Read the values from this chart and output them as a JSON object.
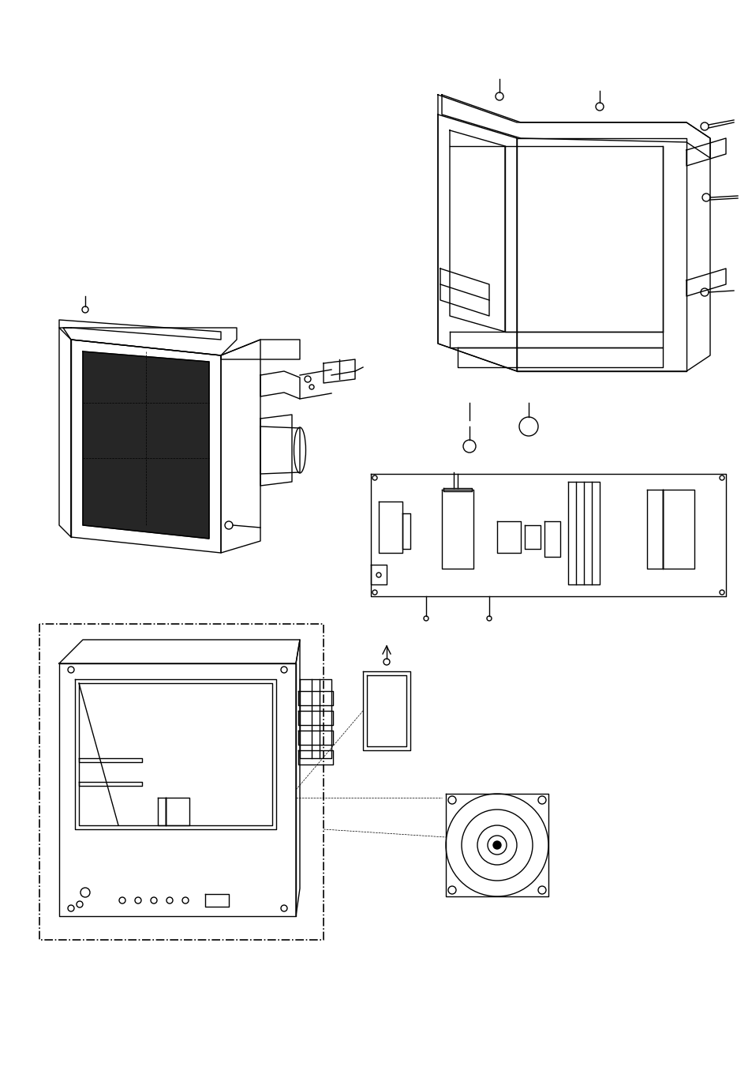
{
  "background_color": "#ffffff",
  "line_color": "#000000",
  "line_width": 1.0,
  "fig_width": 9.54,
  "fig_height": 13.51,
  "dpi": 100
}
